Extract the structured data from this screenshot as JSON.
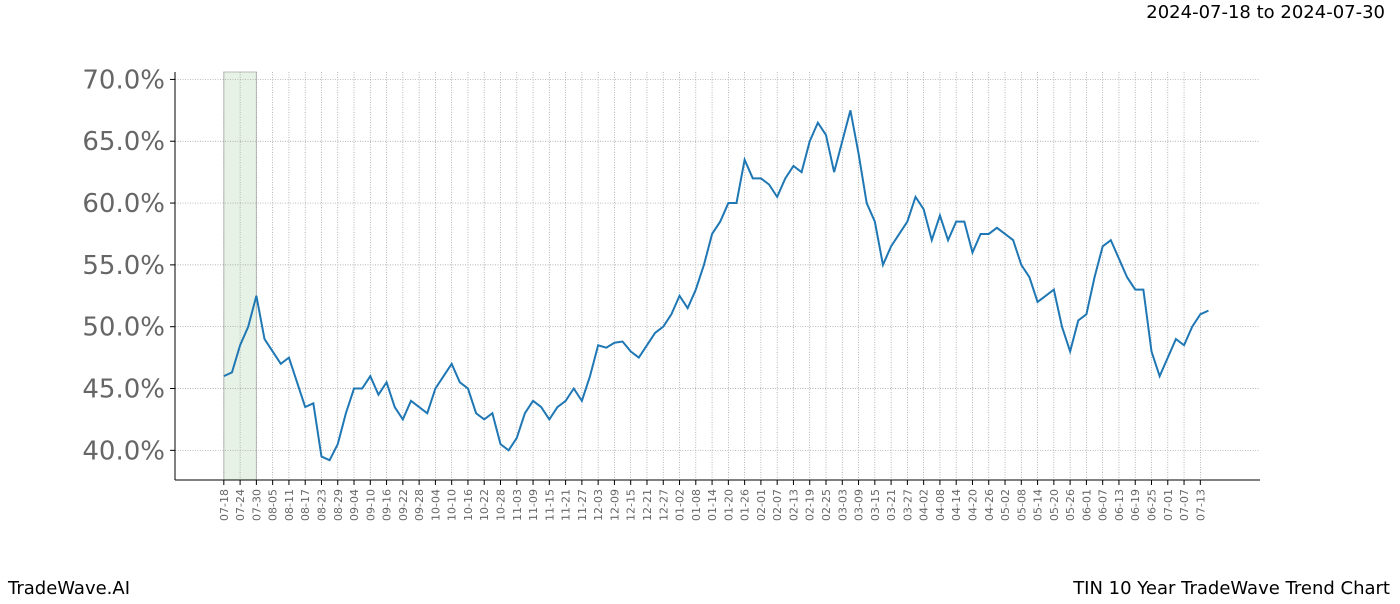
{
  "chart_data": {
    "type": "line",
    "subtitle": "2024-07-18 to 2024-07-30",
    "brand": "TradeWave.AI",
    "title": "TIN 10 Year TradeWave Trend Chart",
    "shade": [
      0,
      12
    ],
    "shade_color": "#d6ead6",
    "grid": true,
    "xlim": [
      -18,
      382
    ],
    "ylim": [
      37.6,
      70.6
    ],
    "yticks": [
      {
        "value": 40,
        "label": "40.0%"
      },
      {
        "value": 45,
        "label": "45.0%"
      },
      {
        "value": 50,
        "label": "50.0%"
      },
      {
        "value": 55,
        "label": "55.0%"
      },
      {
        "value": 60,
        "label": "60.0%"
      },
      {
        "value": 65,
        "label": "65.0%"
      },
      {
        "value": 70,
        "label": "70.0%"
      }
    ],
    "xticks": [
      {
        "value": 0,
        "label": "07-18"
      },
      {
        "value": 6,
        "label": "07-24"
      },
      {
        "value": 12,
        "label": "07-30"
      },
      {
        "value": 18,
        "label": "08-05"
      },
      {
        "value": 24,
        "label": "08-11"
      },
      {
        "value": 30,
        "label": "08-17"
      },
      {
        "value": 36,
        "label": "08-23"
      },
      {
        "value": 42,
        "label": "08-29"
      },
      {
        "value": 48,
        "label": "09-04"
      },
      {
        "value": 54,
        "label": "09-10"
      },
      {
        "value": 60,
        "label": "09-16"
      },
      {
        "value": 66,
        "label": "09-22"
      },
      {
        "value": 72,
        "label": "09-28"
      },
      {
        "value": 78,
        "label": "10-04"
      },
      {
        "value": 84,
        "label": "10-10"
      },
      {
        "value": 90,
        "label": "10-16"
      },
      {
        "value": 96,
        "label": "10-22"
      },
      {
        "value": 102,
        "label": "10-28"
      },
      {
        "value": 108,
        "label": "11-03"
      },
      {
        "value": 114,
        "label": "11-09"
      },
      {
        "value": 120,
        "label": "11-15"
      },
      {
        "value": 126,
        "label": "11-21"
      },
      {
        "value": 132,
        "label": "11-27"
      },
      {
        "value": 138,
        "label": "12-03"
      },
      {
        "value": 144,
        "label": "12-09"
      },
      {
        "value": 150,
        "label": "12-15"
      },
      {
        "value": 156,
        "label": "12-21"
      },
      {
        "value": 162,
        "label": "12-27"
      },
      {
        "value": 168,
        "label": "01-02"
      },
      {
        "value": 174,
        "label": "01-08"
      },
      {
        "value": 180,
        "label": "01-14"
      },
      {
        "value": 186,
        "label": "01-20"
      },
      {
        "value": 192,
        "label": "01-26"
      },
      {
        "value": 198,
        "label": "02-01"
      },
      {
        "value": 204,
        "label": "02-07"
      },
      {
        "value": 210,
        "label": "02-13"
      },
      {
        "value": 216,
        "label": "02-19"
      },
      {
        "value": 222,
        "label": "02-25"
      },
      {
        "value": 228,
        "label": "03-03"
      },
      {
        "value": 234,
        "label": "03-09"
      },
      {
        "value": 240,
        "label": "03-15"
      },
      {
        "value": 246,
        "label": "03-21"
      },
      {
        "value": 252,
        "label": "03-27"
      },
      {
        "value": 258,
        "label": "04-02"
      },
      {
        "value": 264,
        "label": "04-08"
      },
      {
        "value": 270,
        "label": "04-14"
      },
      {
        "value": 276,
        "label": "04-20"
      },
      {
        "value": 282,
        "label": "04-26"
      },
      {
        "value": 288,
        "label": "05-02"
      },
      {
        "value": 294,
        "label": "05-08"
      },
      {
        "value": 300,
        "label": "05-14"
      },
      {
        "value": 306,
        "label": "05-20"
      },
      {
        "value": 312,
        "label": "05-26"
      },
      {
        "value": 318,
        "label": "06-01"
      },
      {
        "value": 324,
        "label": "06-07"
      },
      {
        "value": 330,
        "label": "06-13"
      },
      {
        "value": 336,
        "label": "06-19"
      },
      {
        "value": 342,
        "label": "06-25"
      },
      {
        "value": 348,
        "label": "07-01"
      },
      {
        "value": 354,
        "label": "07-07"
      },
      {
        "value": 360,
        "label": "07-13"
      }
    ],
    "x": [
      0,
      3,
      6,
      9,
      12,
      15,
      18,
      21,
      24,
      27,
      30,
      33,
      36,
      39,
      42,
      45,
      48,
      51,
      54,
      57,
      60,
      63,
      66,
      69,
      72,
      75,
      78,
      81,
      84,
      87,
      90,
      93,
      96,
      99,
      102,
      105,
      108,
      111,
      114,
      117,
      120,
      123,
      126,
      129,
      132,
      135,
      138,
      141,
      144,
      147,
      150,
      153,
      156,
      159,
      162,
      165,
      168,
      171,
      174,
      177,
      180,
      183,
      186,
      189,
      192,
      195,
      198,
      201,
      204,
      207,
      210,
      213,
      216,
      219,
      222,
      225,
      228,
      231,
      234,
      237,
      240,
      243,
      246,
      249,
      252,
      255,
      258,
      261,
      264,
      267,
      270,
      273,
      276,
      279,
      282,
      285,
      288,
      291,
      294,
      297,
      300,
      303,
      306,
      309,
      312,
      315,
      318,
      321,
      324,
      327,
      330,
      333,
      336,
      339,
      342,
      345,
      348,
      351,
      354,
      357,
      360,
      363
    ],
    "series": [
      {
        "color": "#1f77b4",
        "values": [
          46.0,
          46.3,
          48.5,
          50,
          52.5,
          49,
          48,
          47,
          47.5,
          45.5,
          43.5,
          43.8,
          39.5,
          39.2,
          40.5,
          43,
          45,
          45,
          46,
          44.5,
          45.5,
          43.5,
          42.5,
          44,
          43.5,
          43,
          45,
          46,
          47,
          45.5,
          45,
          43,
          42.5,
          43,
          40.5,
          40,
          41,
          43,
          44,
          43.5,
          42.5,
          43.5,
          44,
          45,
          44,
          46,
          48.5,
          48.3,
          48.7,
          48.8,
          48,
          47.5,
          48.5,
          49.5,
          50,
          51,
          52.5,
          51.5,
          53,
          55,
          57.5,
          58.5,
          60,
          60,
          63.5,
          62,
          62,
          61.5,
          60.5,
          62,
          63,
          62.5,
          65,
          66.5,
          65.5,
          62.5,
          65,
          67.5,
          64,
          60,
          58.5,
          55,
          56.5,
          57.5,
          58.5,
          60.5,
          59.5,
          57,
          59,
          57,
          58.5,
          58.5,
          56,
          57.5,
          57.5,
          58,
          57.5,
          57,
          55,
          54,
          52,
          52.5,
          53,
          50,
          48,
          50.5,
          51,
          54,
          56.5,
          57,
          55.5,
          54,
          53,
          53,
          48,
          46,
          47.5,
          49,
          48.5,
          50,
          51,
          51.3
        ]
      }
    ]
  }
}
